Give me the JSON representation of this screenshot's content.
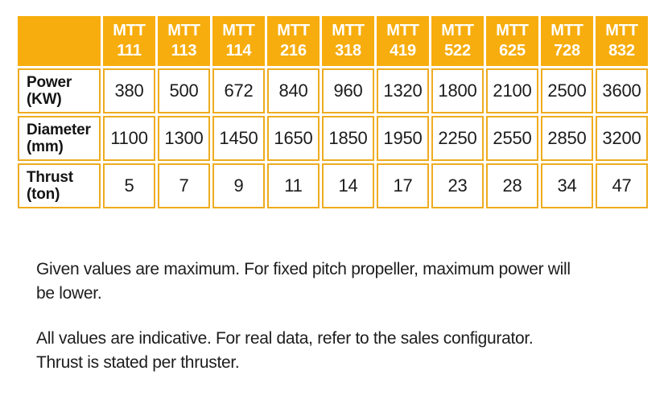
{
  "chart_data": {
    "type": "table",
    "columns": [
      "MTT 111",
      "MTT 113",
      "MTT 114",
      "MTT 216",
      "MTT 318",
      "MTT 419",
      "MTT 522",
      "MTT 625",
      "MTT 728",
      "MTT 832"
    ],
    "rows": [
      {
        "label": "Power (KW)",
        "values": [
          380,
          500,
          672,
          840,
          960,
          1320,
          1800,
          2100,
          2500,
          3600
        ]
      },
      {
        "label": "Diameter (mm)",
        "values": [
          1100,
          1300,
          1450,
          1650,
          1850,
          1950,
          2250,
          2550,
          2850,
          3200
        ]
      },
      {
        "label": "Thrust (ton)",
        "values": [
          5,
          7,
          9,
          11,
          14,
          17,
          23,
          28,
          34,
          47
        ]
      }
    ]
  },
  "notes": [
    {
      "lines": [
        "Given values are maximum. For fixed pitch propeller, maximum power will",
        "be lower."
      ]
    },
    {
      "lines": [
        "All values are indicative. For real data, refer to the sales configurator.",
        "Thrust is stated per thruster."
      ]
    }
  ],
  "colors": {
    "header_bg": "#F7AD0D",
    "cell_border": "#EFAC1E",
    "header_text": "#FFFFFF",
    "body_text": "#1C1C1C"
  }
}
